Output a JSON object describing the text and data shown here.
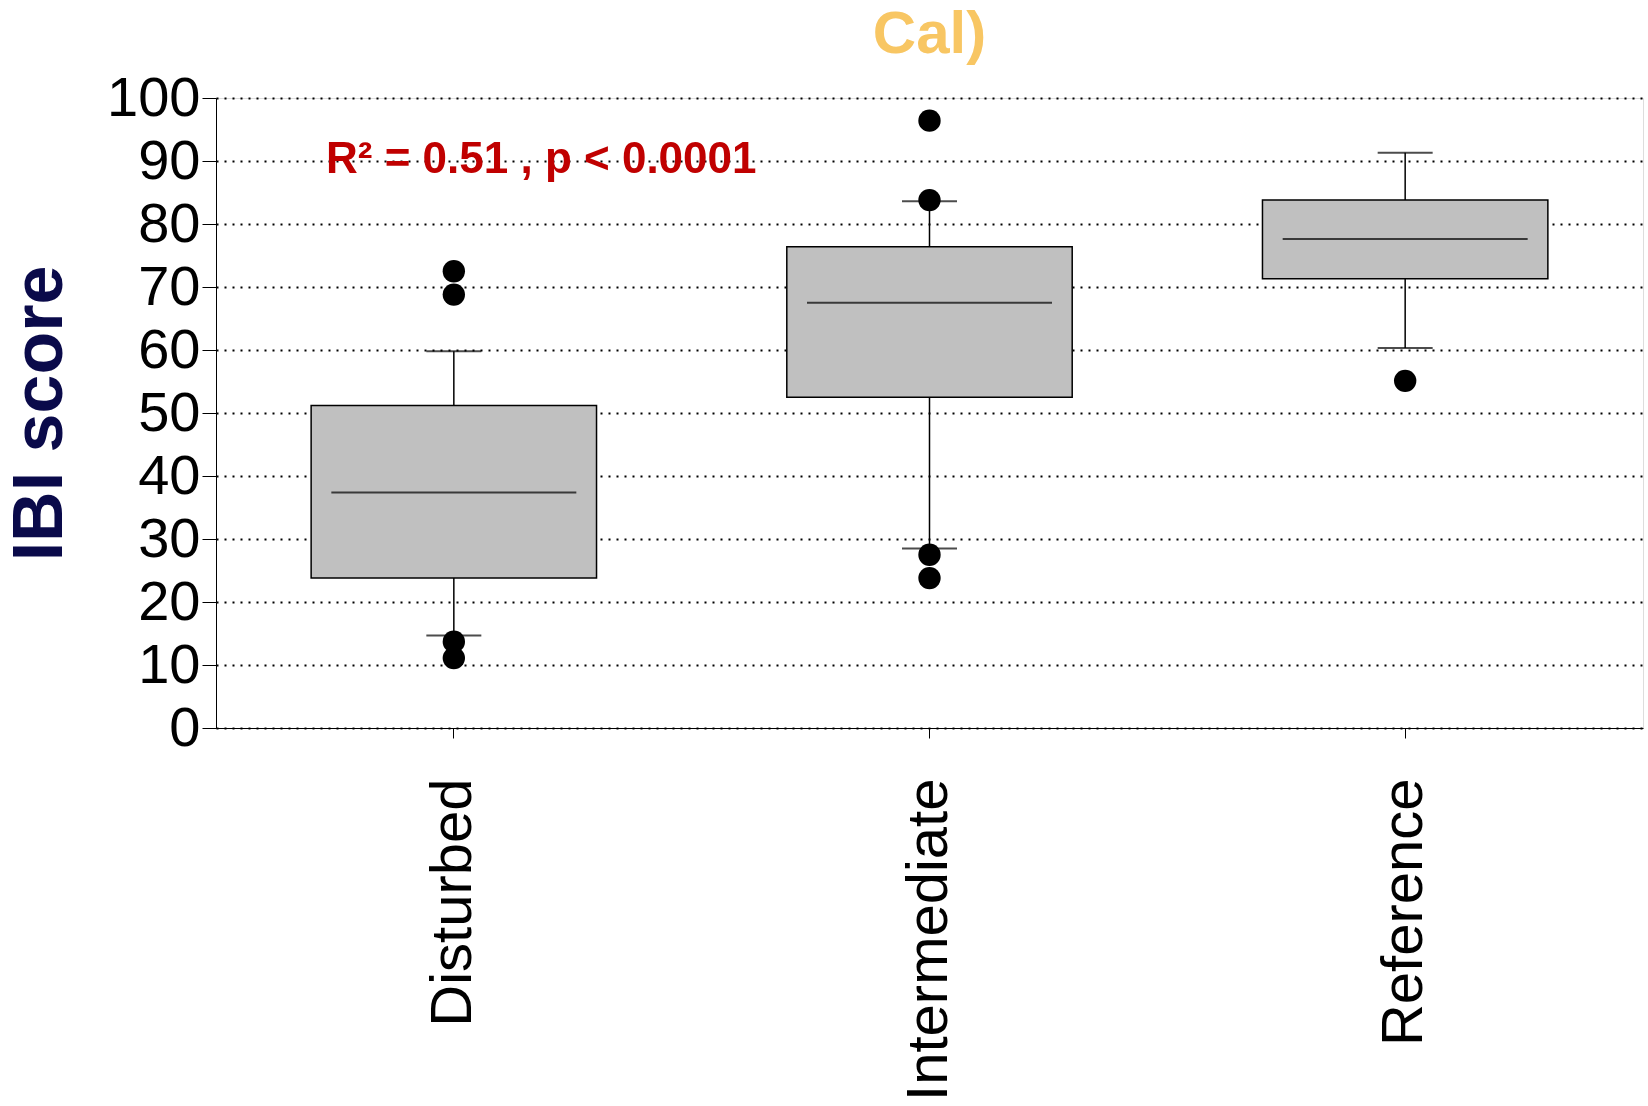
{
  "chart_data": {
    "type": "box",
    "title": "Cal)",
    "categories": [
      "Disturbed",
      "Intermediate",
      "Reference"
    ],
    "boxes": [
      {
        "low": 14.7,
        "q1": 23.8,
        "median": 37.4,
        "q3": 51.2,
        "high": 59.8,
        "outliers": [
          72.5,
          68.8,
          13.7,
          11.1
        ]
      },
      {
        "low": 28.5,
        "q1": 52.5,
        "median": 67.5,
        "q3": 76.4,
        "high": 83.6,
        "outliers": [
          96.4,
          83.8,
          27.5,
          23.8
        ]
      },
      {
        "low": 60.3,
        "q1": 71.3,
        "median": 77.6,
        "q3": 83.8,
        "high": 91.3,
        "outliers": [
          55.1
        ]
      }
    ],
    "color": "#c0c0c0",
    "ylabel": "IBI score",
    "ylim": [
      0,
      100
    ],
    "yticks": [
      0,
      10,
      20,
      30,
      40,
      50,
      60,
      70,
      80,
      90,
      100
    ],
    "grid": "y",
    "annotations": [
      "R² = 0.51 , p < 0.0001"
    ]
  }
}
